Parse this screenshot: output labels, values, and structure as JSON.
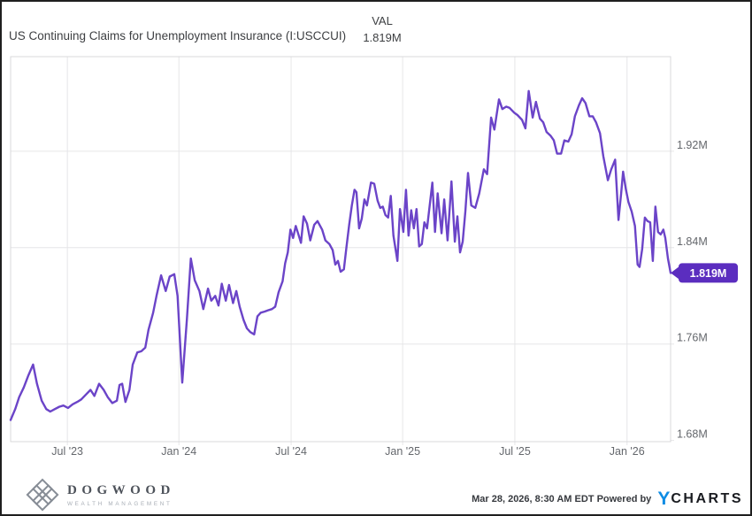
{
  "header": {
    "title": "US Continuing Claims for Unemployment Insurance (I:USCCUI)",
    "val_label": "VAL",
    "val_value": "1.819M"
  },
  "chart_data": {
    "type": "line",
    "title": "US Continuing Claims for Unemployment Insurance (I:USCCUI)",
    "series_name": "I:USCCUI",
    "unit": "M",
    "legend_position": "none",
    "grid": true,
    "last_value_label": "1.819M",
    "y_range": {
      "min": 1.679,
      "max": 1.9985
    },
    "y_ticks": [
      {
        "label": "1.92M",
        "value": 1.92,
        "grid": true
      },
      {
        "label": "1.84M",
        "value": 1.84,
        "grid": true
      },
      {
        "label": "1.76M",
        "value": 1.76,
        "grid": true
      },
      {
        "label": "1.68M",
        "value": 1.68,
        "grid": false
      }
    ],
    "x_ticks": [
      {
        "label": "Jul '23",
        "pos": 0.086
      },
      {
        "label": "Jan '24",
        "pos": 0.255
      },
      {
        "label": "Jul '24",
        "pos": 0.425
      },
      {
        "label": "Jan '25",
        "pos": 0.594
      },
      {
        "label": "Jul '25",
        "pos": 0.764
      },
      {
        "label": "Jan '26",
        "pos": 0.934
      }
    ],
    "colors": {
      "line": "#6b44c8",
      "badge": "#5b2dbf",
      "badge_text": "#ffffff",
      "grid": "#e6e6e8",
      "axis": "#d9d9db",
      "tick_text": "#64676c"
    },
    "points": [
      [
        0.0,
        1.697
      ],
      [
        0.007,
        1.706
      ],
      [
        0.013,
        1.716
      ],
      [
        0.02,
        1.724
      ],
      [
        0.027,
        1.734
      ],
      [
        0.034,
        1.743
      ],
      [
        0.04,
        1.727
      ],
      [
        0.047,
        1.713
      ],
      [
        0.054,
        1.706
      ],
      [
        0.06,
        1.704
      ],
      [
        0.067,
        1.706
      ],
      [
        0.074,
        1.708
      ],
      [
        0.08,
        1.709
      ],
      [
        0.087,
        1.707
      ],
      [
        0.094,
        1.71
      ],
      [
        0.101,
        1.712
      ],
      [
        0.107,
        1.714
      ],
      [
        0.114,
        1.718
      ],
      [
        0.121,
        1.722
      ],
      [
        0.127,
        1.717
      ],
      [
        0.134,
        1.727
      ],
      [
        0.141,
        1.722
      ],
      [
        0.147,
        1.716
      ],
      [
        0.154,
        1.711
      ],
      [
        0.161,
        1.713
      ],
      [
        0.165,
        1.726
      ],
      [
        0.169,
        1.727
      ],
      [
        0.174,
        1.712
      ],
      [
        0.18,
        1.722
      ],
      [
        0.185,
        1.743
      ],
      [
        0.192,
        1.753
      ],
      [
        0.198,
        1.754
      ],
      [
        0.204,
        1.757
      ],
      [
        0.209,
        1.772
      ],
      [
        0.216,
        1.786
      ],
      [
        0.221,
        1.8
      ],
      [
        0.228,
        1.817
      ],
      [
        0.235,
        1.804
      ],
      [
        0.241,
        1.816
      ],
      [
        0.248,
        1.818
      ],
      [
        0.253,
        1.8
      ],
      [
        0.26,
        1.728
      ],
      [
        0.267,
        1.78
      ],
      [
        0.273,
        1.831
      ],
      [
        0.279,
        1.813
      ],
      [
        0.286,
        1.804
      ],
      [
        0.292,
        1.789
      ],
      [
        0.299,
        1.806
      ],
      [
        0.304,
        1.796
      ],
      [
        0.31,
        1.8
      ],
      [
        0.315,
        1.792
      ],
      [
        0.32,
        1.81
      ],
      [
        0.326,
        1.796
      ],
      [
        0.331,
        1.809
      ],
      [
        0.337,
        1.794
      ],
      [
        0.342,
        1.804
      ],
      [
        0.347,
        1.791
      ],
      [
        0.353,
        1.78
      ],
      [
        0.358,
        1.773
      ],
      [
        0.363,
        1.77
      ],
      [
        0.369,
        1.768
      ],
      [
        0.374,
        1.783
      ],
      [
        0.379,
        1.786
      ],
      [
        0.385,
        1.787
      ],
      [
        0.39,
        1.788
      ],
      [
        0.396,
        1.789
      ],
      [
        0.401,
        1.791
      ],
      [
        0.406,
        1.803
      ],
      [
        0.412,
        1.812
      ],
      [
        0.416,
        1.827
      ],
      [
        0.42,
        1.836
      ],
      [
        0.424,
        1.855
      ],
      [
        0.428,
        1.848
      ],
      [
        0.432,
        1.858
      ],
      [
        0.436,
        1.851
      ],
      [
        0.44,
        1.844
      ],
      [
        0.444,
        1.866
      ],
      [
        0.449,
        1.86
      ],
      [
        0.454,
        1.846
      ],
      [
        0.46,
        1.859
      ],
      [
        0.465,
        1.862
      ],
      [
        0.472,
        1.855
      ],
      [
        0.477,
        1.846
      ],
      [
        0.483,
        1.843
      ],
      [
        0.488,
        1.838
      ],
      [
        0.492,
        1.826
      ],
      [
        0.496,
        1.829
      ],
      [
        0.5,
        1.82
      ],
      [
        0.505,
        1.822
      ],
      [
        0.509,
        1.841
      ],
      [
        0.513,
        1.859
      ],
      [
        0.517,
        1.875
      ],
      [
        0.521,
        1.888
      ],
      [
        0.524,
        1.886
      ],
      [
        0.528,
        1.856
      ],
      [
        0.532,
        1.864
      ],
      [
        0.536,
        1.88
      ],
      [
        0.54,
        1.875
      ],
      [
        0.546,
        1.894
      ],
      [
        0.551,
        1.893
      ],
      [
        0.556,
        1.879
      ],
      [
        0.56,
        1.873
      ],
      [
        0.564,
        1.874
      ],
      [
        0.568,
        1.867
      ],
      [
        0.572,
        1.865
      ],
      [
        0.576,
        1.883
      ],
      [
        0.58,
        1.85
      ],
      [
        0.586,
        1.829
      ],
      [
        0.59,
        1.872
      ],
      [
        0.595,
        1.853
      ],
      [
        0.599,
        1.888
      ],
      [
        0.603,
        1.85
      ],
      [
        0.607,
        1.871
      ],
      [
        0.611,
        1.856
      ],
      [
        0.615,
        1.872
      ],
      [
        0.619,
        1.841
      ],
      [
        0.623,
        1.843
      ],
      [
        0.627,
        1.861
      ],
      [
        0.631,
        1.856
      ],
      [
        0.635,
        1.875
      ],
      [
        0.639,
        1.894
      ],
      [
        0.643,
        1.853
      ],
      [
        0.647,
        1.885
      ],
      [
        0.653,
        1.852
      ],
      [
        0.657,
        1.88
      ],
      [
        0.662,
        1.846
      ],
      [
        0.668,
        1.895
      ],
      [
        0.673,
        1.845
      ],
      [
        0.677,
        1.866
      ],
      [
        0.681,
        1.836
      ],
      [
        0.685,
        1.845
      ],
      [
        0.689,
        1.87
      ],
      [
        0.693,
        1.902
      ],
      [
        0.698,
        1.875
      ],
      [
        0.704,
        1.873
      ],
      [
        0.71,
        1.885
      ],
      [
        0.717,
        1.905
      ],
      [
        0.722,
        1.901
      ],
      [
        0.728,
        1.948
      ],
      [
        0.733,
        1.938
      ],
      [
        0.74,
        1.963
      ],
      [
        0.745,
        1.955
      ],
      [
        0.751,
        1.957
      ],
      [
        0.756,
        1.956
      ],
      [
        0.763,
        1.952
      ],
      [
        0.768,
        1.95
      ],
      [
        0.775,
        1.946
      ],
      [
        0.78,
        1.939
      ],
      [
        0.785,
        1.97
      ],
      [
        0.791,
        1.948
      ],
      [
        0.796,
        1.961
      ],
      [
        0.802,
        1.947
      ],
      [
        0.807,
        1.944
      ],
      [
        0.812,
        1.936
      ],
      [
        0.818,
        1.933
      ],
      [
        0.823,
        1.929
      ],
      [
        0.828,
        1.918
      ],
      [
        0.834,
        1.918
      ],
      [
        0.839,
        1.929
      ],
      [
        0.845,
        1.928
      ],
      [
        0.85,
        1.934
      ],
      [
        0.855,
        1.949
      ],
      [
        0.861,
        1.958
      ],
      [
        0.866,
        1.964
      ],
      [
        0.871,
        1.96
      ],
      [
        0.877,
        1.949
      ],
      [
        0.882,
        1.949
      ],
      [
        0.887,
        1.944
      ],
      [
        0.893,
        1.935
      ],
      [
        0.898,
        1.916
      ],
      [
        0.905,
        1.896
      ],
      [
        0.91,
        1.905
      ],
      [
        0.916,
        1.913
      ],
      [
        0.921,
        1.863
      ],
      [
        0.925,
        1.885
      ],
      [
        0.928,
        1.903
      ],
      [
        0.932,
        1.889
      ],
      [
        0.936,
        1.878
      ],
      [
        0.941,
        1.87
      ],
      [
        0.946,
        1.858
      ],
      [
        0.95,
        1.826
      ],
      [
        0.953,
        1.824
      ],
      [
        0.957,
        1.839
      ],
      [
        0.961,
        1.865
      ],
      [
        0.965,
        1.862
      ],
      [
        0.969,
        1.861
      ],
      [
        0.973,
        1.829
      ],
      [
        0.977,
        1.874
      ],
      [
        0.981,
        1.853
      ],
      [
        0.985,
        1.851
      ],
      [
        0.989,
        1.855
      ],
      [
        0.992,
        1.848
      ],
      [
        0.996,
        1.831
      ],
      [
        1.0,
        1.819
      ]
    ]
  },
  "footer": {
    "dogwood_name": "DOGWOOD",
    "dogwood_sub": "WEALTH MANAGEMENT",
    "timestamp": "Mar 28, 2026, 8:30 AM EDT",
    "powered_by": "Powered by",
    "ycharts_y": "Y",
    "ycharts_rest": "CHARTS"
  }
}
